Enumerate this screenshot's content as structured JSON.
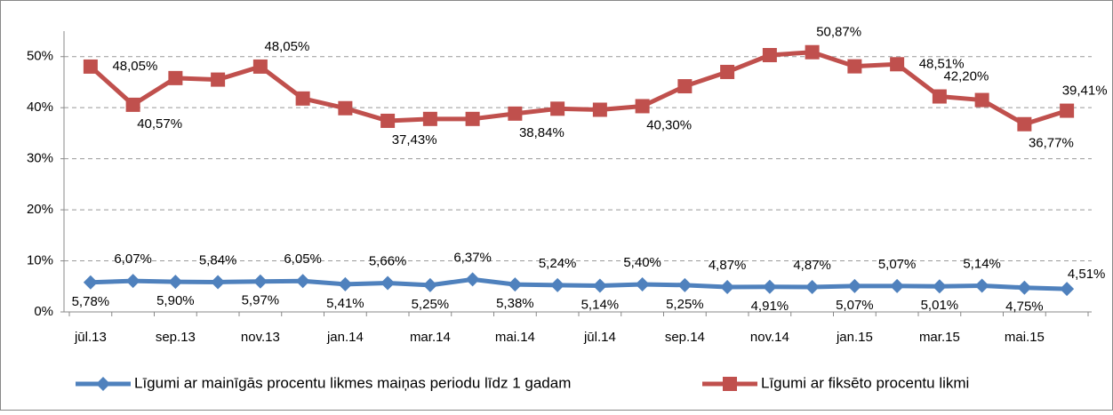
{
  "chart_data": {
    "type": "line",
    "categories": [
      "jūl.13",
      null,
      "sep.13",
      null,
      "nov.13",
      null,
      "jan.14",
      null,
      "mar.14",
      null,
      "mai.14",
      null,
      "jūl.14",
      null,
      "sep.14",
      null,
      "nov.14",
      null,
      "jan.15",
      null,
      "mar.15",
      null,
      "mai.15",
      null
    ],
    "series": [
      {
        "name": "Līgumi ar mainīgās procentu likmes maiņas periodu līdz 1 gadam",
        "color": "#4f81bd",
        "marker": "diamond",
        "values": [
          5.78,
          6.07,
          5.9,
          5.84,
          5.97,
          6.05,
          5.41,
          5.66,
          5.25,
          6.37,
          5.38,
          5.24,
          5.14,
          5.4,
          5.25,
          4.87,
          4.91,
          4.87,
          5.07,
          5.07,
          5.01,
          5.14,
          4.75,
          4.51
        ],
        "value_labels": [
          "5,78%",
          "6,07%",
          "5,90%",
          "5,84%",
          "5,97%",
          "6,05%",
          "5,41%",
          "5,66%",
          "5,25%",
          "6,37%",
          "5,38%",
          "5,24%",
          "5,14%",
          "5,40%",
          "5,25%",
          "4,87%",
          "4,91%",
          "4,87%",
          "5,07%",
          "5,07%",
          "5,01%",
          "5,14%",
          "4,75%",
          "4,51%"
        ]
      },
      {
        "name": "Līgumi ar fiksēto procentu likmi",
        "color": "#c0504d",
        "marker": "square",
        "values": [
          48.05,
          40.57,
          45.8,
          45.5,
          48.05,
          41.8,
          39.9,
          37.43,
          37.8,
          37.8,
          38.84,
          39.8,
          39.6,
          40.3,
          44.2,
          47.0,
          50.3,
          50.87,
          48.1,
          48.51,
          42.2,
          41.5,
          36.77,
          39.41
        ],
        "value_labels": [
          "48,05%",
          "40,57%",
          null,
          null,
          "48,05%",
          null,
          null,
          "37,43%",
          null,
          null,
          "38,84%",
          null,
          null,
          "40,30%",
          null,
          null,
          null,
          "50,87%",
          null,
          "48,51%",
          "42,20%",
          null,
          "36,77%",
          "39,41%"
        ]
      }
    ],
    "ylim": [
      0,
      55
    ],
    "yticks": [
      {
        "value": 0,
        "label": "0%"
      },
      {
        "value": 10,
        "label": "10%"
      },
      {
        "value": 20,
        "label": "20%"
      },
      {
        "value": 30,
        "label": "30%"
      },
      {
        "value": 40,
        "label": "40%"
      },
      {
        "value": 50,
        "label": "50%"
      }
    ],
    "grid": true,
    "legend": "bottom"
  }
}
